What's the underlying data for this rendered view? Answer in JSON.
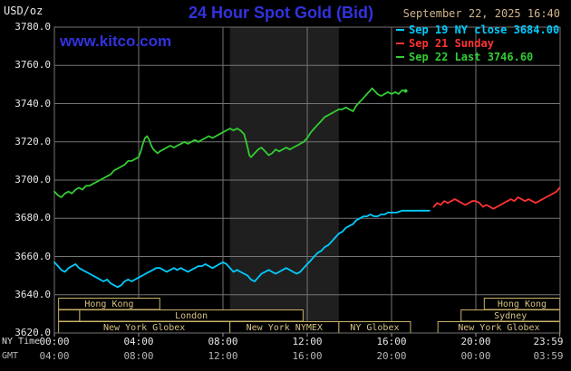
{
  "header": {
    "units_label": "USD/oz",
    "title": "24 Hour Spot Gold (Bid)",
    "datetime": "September 22, 2025 16:40",
    "watermark": "www.kitco.com",
    "legend": [
      {
        "label": "Sep 19 NY close 3684.00",
        "color": "#00ccff"
      },
      {
        "label": "Sep 21 Sunday",
        "color": "#ff3333"
      },
      {
        "label": "Sep 22 Last 3746.60",
        "color": "#33cc33"
      }
    ]
  },
  "chart_data": {
    "type": "line",
    "title": "24 Hour Spot Gold (Bid)",
    "ylabel": "USD/oz",
    "background": "#000000",
    "grid": true,
    "grid_color": "#757575",
    "legend_position": "top-right",
    "nymex_band_hours": [
      8.33,
      13.5
    ],
    "x_axis": {
      "label_primary": "NY Time",
      "label_secondary": "GMT",
      "ticks": [
        {
          "hour": 0,
          "ny": "00:00",
          "gmt": "04:00"
        },
        {
          "hour": 4,
          "ny": "04:00",
          "gmt": "08:00"
        },
        {
          "hour": 8,
          "ny": "08:00",
          "gmt": "12:00"
        },
        {
          "hour": 12,
          "ny": "12:00",
          "gmt": "16:00"
        },
        {
          "hour": 16,
          "ny": "16:00",
          "gmt": "20:00"
        },
        {
          "hour": 20,
          "ny": "20:00",
          "gmt": "00:00"
        },
        {
          "hour": 23.983,
          "ny": "23:59",
          "gmt": "03:59"
        }
      ]
    },
    "y_axis": {
      "lim": [
        3620,
        3780
      ],
      "ticks": [
        {
          "value": 3780,
          "label": "3780.0"
        },
        {
          "value": 3760,
          "label": "3760.0"
        },
        {
          "value": 3740,
          "label": "3740.0"
        },
        {
          "value": 3720,
          "label": "3720.0"
        },
        {
          "value": 3700,
          "label": "3700.0"
        },
        {
          "value": 3680,
          "label": "3680.0"
        },
        {
          "value": 3660,
          "label": "3660.0"
        },
        {
          "value": 3640,
          "label": "3640.0"
        },
        {
          "value": 3620,
          "label": "3620.0"
        }
      ]
    },
    "sessions": [
      {
        "row": 0,
        "start": 0.2,
        "end": 5.0,
        "label": "Hong Kong"
      },
      {
        "row": 0,
        "start": 20.4,
        "end": 23.983,
        "label": "Hong Kong"
      },
      {
        "row": 1,
        "start": 0.2,
        "end": 1.2,
        "label": ""
      },
      {
        "row": 1,
        "start": 1.2,
        "end": 11.8,
        "label": "London"
      },
      {
        "row": 1,
        "start": 19.3,
        "end": 23.983,
        "label": "Sydney"
      },
      {
        "row": 2,
        "start": 0.2,
        "end": 8.33,
        "label": "New York Globex"
      },
      {
        "row": 2,
        "start": 8.33,
        "end": 13.5,
        "label": "New York NYMEX"
      },
      {
        "row": 2,
        "start": 13.5,
        "end": 16.9,
        "label": "NY Globex"
      },
      {
        "row": 2,
        "start": 18.2,
        "end": 23.983,
        "label": "New York Globex"
      }
    ],
    "series": [
      {
        "id": "sep19",
        "name": "Sep 19 NY close 3684.00",
        "color": "#00ccff",
        "points": [
          [
            0,
            3657
          ],
          [
            0.17,
            3655
          ],
          [
            0.33,
            3653
          ],
          [
            0.5,
            3652
          ],
          [
            0.67,
            3654
          ],
          [
            0.83,
            3655
          ],
          [
            1,
            3656
          ],
          [
            1.17,
            3654
          ],
          [
            1.33,
            3653
          ],
          [
            1.5,
            3652
          ],
          [
            1.67,
            3651
          ],
          [
            1.83,
            3650
          ],
          [
            2,
            3649
          ],
          [
            2.17,
            3648
          ],
          [
            2.33,
            3647
          ],
          [
            2.5,
            3648
          ],
          [
            2.67,
            3646
          ],
          [
            2.83,
            3645
          ],
          [
            3,
            3644
          ],
          [
            3.17,
            3645
          ],
          [
            3.33,
            3647
          ],
          [
            3.5,
            3648
          ],
          [
            3.67,
            3647
          ],
          [
            3.83,
            3648
          ],
          [
            4,
            3649
          ],
          [
            4.17,
            3650
          ],
          [
            4.33,
            3651
          ],
          [
            4.5,
            3652
          ],
          [
            4.67,
            3653
          ],
          [
            4.83,
            3654
          ],
          [
            5,
            3654
          ],
          [
            5.17,
            3653
          ],
          [
            5.33,
            3652
          ],
          [
            5.5,
            3653
          ],
          [
            5.67,
            3654
          ],
          [
            5.83,
            3653
          ],
          [
            6,
            3654
          ],
          [
            6.17,
            3653
          ],
          [
            6.33,
            3652
          ],
          [
            6.5,
            3653
          ],
          [
            6.67,
            3654
          ],
          [
            6.83,
            3655
          ],
          [
            7,
            3655
          ],
          [
            7.17,
            3656
          ],
          [
            7.33,
            3655
          ],
          [
            7.5,
            3654
          ],
          [
            7.67,
            3655
          ],
          [
            7.83,
            3656
          ],
          [
            8,
            3657
          ],
          [
            8.17,
            3656
          ],
          [
            8.33,
            3654
          ],
          [
            8.5,
            3652
          ],
          [
            8.67,
            3653
          ],
          [
            8.83,
            3652
          ],
          [
            9,
            3651
          ],
          [
            9.17,
            3650
          ],
          [
            9.33,
            3648
          ],
          [
            9.5,
            3647
          ],
          [
            9.67,
            3649
          ],
          [
            9.83,
            3651
          ],
          [
            10,
            3652
          ],
          [
            10.17,
            3653
          ],
          [
            10.33,
            3652
          ],
          [
            10.5,
            3651
          ],
          [
            10.67,
            3652
          ],
          [
            10.83,
            3653
          ],
          [
            11,
            3654
          ],
          [
            11.17,
            3653
          ],
          [
            11.33,
            3652
          ],
          [
            11.5,
            3651
          ],
          [
            11.67,
            3652
          ],
          [
            11.83,
            3654
          ],
          [
            12,
            3656
          ],
          [
            12.17,
            3658
          ],
          [
            12.33,
            3660
          ],
          [
            12.5,
            3662
          ],
          [
            12.67,
            3663
          ],
          [
            12.83,
            3665
          ],
          [
            13,
            3666
          ],
          [
            13.17,
            3668
          ],
          [
            13.33,
            3670
          ],
          [
            13.5,
            3672
          ],
          [
            13.67,
            3673
          ],
          [
            13.83,
            3675
          ],
          [
            14,
            3676
          ],
          [
            14.17,
            3677
          ],
          [
            14.33,
            3679
          ],
          [
            14.5,
            3680
          ],
          [
            14.67,
            3681
          ],
          [
            14.83,
            3681
          ],
          [
            15,
            3682
          ],
          [
            15.17,
            3681
          ],
          [
            15.33,
            3681
          ],
          [
            15.5,
            3682
          ],
          [
            15.67,
            3682
          ],
          [
            15.83,
            3683
          ],
          [
            16,
            3683
          ],
          [
            16.25,
            3683
          ],
          [
            16.5,
            3684
          ],
          [
            17,
            3684
          ],
          [
            17.5,
            3684
          ],
          [
            17.8,
            3684
          ]
        ]
      },
      {
        "id": "sep21",
        "name": "Sep 21 Sunday",
        "color": "#ff3333",
        "points": [
          [
            18,
            3686
          ],
          [
            18.17,
            3688
          ],
          [
            18.33,
            3687
          ],
          [
            18.5,
            3689
          ],
          [
            18.67,
            3688
          ],
          [
            18.83,
            3689
          ],
          [
            19,
            3690
          ],
          [
            19.17,
            3689
          ],
          [
            19.33,
            3688
          ],
          [
            19.5,
            3687
          ],
          [
            19.67,
            3688
          ],
          [
            19.83,
            3689
          ],
          [
            20,
            3689
          ],
          [
            20.17,
            3688
          ],
          [
            20.33,
            3686
          ],
          [
            20.5,
            3687
          ],
          [
            20.67,
            3686
          ],
          [
            20.83,
            3685
          ],
          [
            21,
            3686
          ],
          [
            21.17,
            3687
          ],
          [
            21.33,
            3688
          ],
          [
            21.5,
            3689
          ],
          [
            21.67,
            3690
          ],
          [
            21.83,
            3689
          ],
          [
            22,
            3691
          ],
          [
            22.17,
            3690
          ],
          [
            22.33,
            3689
          ],
          [
            22.5,
            3690
          ],
          [
            22.67,
            3689
          ],
          [
            22.83,
            3688
          ],
          [
            23,
            3689
          ],
          [
            23.17,
            3690
          ],
          [
            23.33,
            3691
          ],
          [
            23.5,
            3692
          ],
          [
            23.67,
            3693
          ],
          [
            23.83,
            3694
          ],
          [
            23.98,
            3696
          ]
        ]
      },
      {
        "id": "sep22",
        "name": "Sep 22 Last 3746.60",
        "color": "#33cc33",
        "points": [
          [
            0,
            3694
          ],
          [
            0.17,
            3692
          ],
          [
            0.33,
            3691
          ],
          [
            0.5,
            3693
          ],
          [
            0.67,
            3694
          ],
          [
            0.83,
            3693
          ],
          [
            1,
            3695
          ],
          [
            1.17,
            3696
          ],
          [
            1.33,
            3695
          ],
          [
            1.5,
            3697
          ],
          [
            1.67,
            3697
          ],
          [
            1.83,
            3698
          ],
          [
            2,
            3699
          ],
          [
            2.17,
            3700
          ],
          [
            2.33,
            3701
          ],
          [
            2.5,
            3702
          ],
          [
            2.67,
            3703
          ],
          [
            2.83,
            3705
          ],
          [
            3,
            3706
          ],
          [
            3.17,
            3707
          ],
          [
            3.33,
            3708
          ],
          [
            3.5,
            3710
          ],
          [
            3.67,
            3710
          ],
          [
            3.83,
            3711
          ],
          [
            4,
            3712
          ],
          [
            4.1,
            3715
          ],
          [
            4.2,
            3719
          ],
          [
            4.3,
            3722
          ],
          [
            4.4,
            3723
          ],
          [
            4.5,
            3721
          ],
          [
            4.6,
            3718
          ],
          [
            4.7,
            3716
          ],
          [
            4.8,
            3715
          ],
          [
            4.9,
            3714
          ],
          [
            5,
            3715
          ],
          [
            5.17,
            3716
          ],
          [
            5.33,
            3717
          ],
          [
            5.5,
            3718
          ],
          [
            5.67,
            3717
          ],
          [
            5.83,
            3718
          ],
          [
            6,
            3719
          ],
          [
            6.17,
            3720
          ],
          [
            6.33,
            3719
          ],
          [
            6.5,
            3720
          ],
          [
            6.67,
            3721
          ],
          [
            6.83,
            3720
          ],
          [
            7,
            3721
          ],
          [
            7.17,
            3722
          ],
          [
            7.33,
            3723
          ],
          [
            7.5,
            3722
          ],
          [
            7.67,
            3723
          ],
          [
            7.83,
            3724
          ],
          [
            8,
            3725
          ],
          [
            8.17,
            3726
          ],
          [
            8.33,
            3727
          ],
          [
            8.5,
            3726
          ],
          [
            8.67,
            3727
          ],
          [
            8.83,
            3726
          ],
          [
            9,
            3724
          ],
          [
            9.08,
            3721
          ],
          [
            9.17,
            3717
          ],
          [
            9.25,
            3713
          ],
          [
            9.33,
            3712
          ],
          [
            9.5,
            3714
          ],
          [
            9.67,
            3716
          ],
          [
            9.83,
            3717
          ],
          [
            10,
            3715
          ],
          [
            10.17,
            3713
          ],
          [
            10.33,
            3714
          ],
          [
            10.5,
            3716
          ],
          [
            10.67,
            3715
          ],
          [
            10.83,
            3716
          ],
          [
            11,
            3717
          ],
          [
            11.17,
            3716
          ],
          [
            11.33,
            3717
          ],
          [
            11.5,
            3718
          ],
          [
            11.67,
            3719
          ],
          [
            11.83,
            3720
          ],
          [
            12,
            3722
          ],
          [
            12.17,
            3725
          ],
          [
            12.33,
            3727
          ],
          [
            12.5,
            3729
          ],
          [
            12.67,
            3731
          ],
          [
            12.83,
            3733
          ],
          [
            13,
            3734
          ],
          [
            13.17,
            3735
          ],
          [
            13.33,
            3736
          ],
          [
            13.5,
            3737
          ],
          [
            13.67,
            3737
          ],
          [
            13.83,
            3738
          ],
          [
            14,
            3737
          ],
          [
            14.17,
            3736
          ],
          [
            14.33,
            3739
          ],
          [
            14.5,
            3741
          ],
          [
            14.67,
            3743
          ],
          [
            14.83,
            3745
          ],
          [
            15,
            3747
          ],
          [
            15.08,
            3748
          ],
          [
            15.17,
            3747
          ],
          [
            15.33,
            3745
          ],
          [
            15.5,
            3744
          ],
          [
            15.67,
            3745
          ],
          [
            15.83,
            3746
          ],
          [
            16,
            3745
          ],
          [
            16.17,
            3746
          ],
          [
            16.33,
            3745
          ],
          [
            16.5,
            3747
          ],
          [
            16.67,
            3746.6
          ]
        ]
      }
    ]
  }
}
